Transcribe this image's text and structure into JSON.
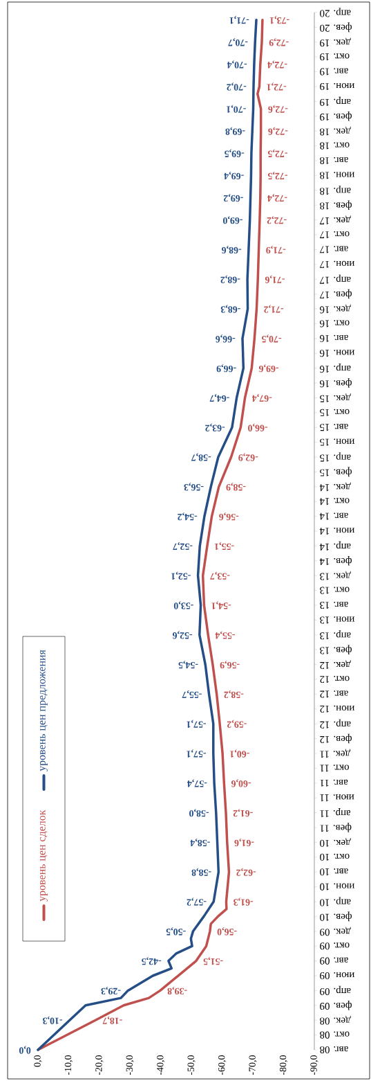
{
  "chart_data": {
    "type": "line",
    "orientation": "horizontal",
    "legend": "left",
    "ylim": [
      "2008-08",
      "2020-04"
    ],
    "yticks": [
      {
        "value": "2008-08",
        "label": "авг. 08"
      },
      {
        "value": "2008-10",
        "label": "окт. 08"
      },
      {
        "value": "2008-12",
        "label": "дек. 08"
      },
      {
        "value": "2009-02",
        "label": "фев. 09"
      },
      {
        "value": "2009-04",
        "label": "апр. 09"
      },
      {
        "value": "2009-06",
        "label": "июн. 09"
      },
      {
        "value": "2009-08",
        "label": "авг. 09"
      },
      {
        "value": "2009-10",
        "label": "окт. 09"
      },
      {
        "value": "2009-12",
        "label": "дек. 09"
      },
      {
        "value": "2010-02",
        "label": "фев. 10"
      },
      {
        "value": "2010-04",
        "label": "апр. 10"
      },
      {
        "value": "2010-06",
        "label": "июн. 10"
      },
      {
        "value": "2010-08",
        "label": "авг. 10"
      },
      {
        "value": "2010-10",
        "label": "окт. 10"
      },
      {
        "value": "2010-12",
        "label": "дек. 10"
      },
      {
        "value": "2011-02",
        "label": "фев. 11"
      },
      {
        "value": "2011-04",
        "label": "апр. 11"
      },
      {
        "value": "2011-06",
        "label": "июн. 11"
      },
      {
        "value": "2011-08",
        "label": "авг. 11"
      },
      {
        "value": "2011-10",
        "label": "окт. 11"
      },
      {
        "value": "2011-12",
        "label": "дек. 11"
      },
      {
        "value": "2012-02",
        "label": "фев. 12"
      },
      {
        "value": "2012-04",
        "label": "апр. 12"
      },
      {
        "value": "2012-06",
        "label": "июн. 12"
      },
      {
        "value": "2012-08",
        "label": "авг. 12"
      },
      {
        "value": "2012-10",
        "label": "окт. 12"
      },
      {
        "value": "2012-12",
        "label": "дек. 12"
      },
      {
        "value": "2013-02",
        "label": "фев. 13"
      },
      {
        "value": "2013-04",
        "label": "апр. 13"
      },
      {
        "value": "2013-06",
        "label": "июн. 13"
      },
      {
        "value": "2013-08",
        "label": "авг. 13"
      },
      {
        "value": "2013-10",
        "label": "окт. 13"
      },
      {
        "value": "2013-12",
        "label": "дек. 13"
      },
      {
        "value": "2014-02",
        "label": "фев. 14"
      },
      {
        "value": "2014-04",
        "label": "апр. 14"
      },
      {
        "value": "2014-06",
        "label": "июн. 14"
      },
      {
        "value": "2014-08",
        "label": "авг. 14"
      },
      {
        "value": "2014-10",
        "label": "окт. 14"
      },
      {
        "value": "2014-12",
        "label": "дек. 14"
      },
      {
        "value": "2015-02",
        "label": "фев. 15"
      },
      {
        "value": "2015-04",
        "label": "апр. 15"
      },
      {
        "value": "2015-06",
        "label": "июн. 15"
      },
      {
        "value": "2015-08",
        "label": "авг. 15"
      },
      {
        "value": "2015-10",
        "label": "окт. 15"
      },
      {
        "value": "2015-12",
        "label": "дек. 15"
      },
      {
        "value": "2016-02",
        "label": "фев. 16"
      },
      {
        "value": "2016-04",
        "label": "апр. 16"
      },
      {
        "value": "2016-06",
        "label": "июн. 16"
      },
      {
        "value": "2016-08",
        "label": "авг. 16"
      },
      {
        "value": "2016-10",
        "label": "окт. 16"
      },
      {
        "value": "2016-12",
        "label": "дек. 16"
      },
      {
        "value": "2017-02",
        "label": "фев. 17"
      },
      {
        "value": "2017-04",
        "label": "апр. 17"
      },
      {
        "value": "2017-06",
        "label": "июн. 17"
      },
      {
        "value": "2017-08",
        "label": "авг. 17"
      },
      {
        "value": "2017-10",
        "label": "окт. 17"
      },
      {
        "value": "2017-12",
        "label": "дек. 17"
      },
      {
        "value": "2018-02",
        "label": "фев. 18"
      },
      {
        "value": "2018-04",
        "label": "апр. 18"
      },
      {
        "value": "2018-06",
        "label": "июн. 18"
      },
      {
        "value": "2018-08",
        "label": "авг. 18"
      },
      {
        "value": "2018-10",
        "label": "окт. 18"
      },
      {
        "value": "2018-12",
        "label": "дек. 18"
      },
      {
        "value": "2019-02",
        "label": "фев. 19"
      },
      {
        "value": "2019-04",
        "label": "апр. 19"
      },
      {
        "value": "2019-06",
        "label": "июн. 19"
      },
      {
        "value": "2019-08",
        "label": "авг. 19"
      },
      {
        "value": "2019-10",
        "label": "окт. 19"
      },
      {
        "value": "2019-12",
        "label": "дек. 19"
      },
      {
        "value": "2020-02",
        "label": "фев. 20"
      },
      {
        "value": "2020-04",
        "label": "апр. 20"
      }
    ],
    "xlim": [
      0,
      -90
    ],
    "xticks": [
      {
        "value": 0,
        "label": "0,0"
      },
      {
        "value": -10,
        "label": "-10,0"
      },
      {
        "value": -20,
        "label": "-20,0"
      },
      {
        "value": -30,
        "label": "-30,0"
      },
      {
        "value": -40,
        "label": "-40,0"
      },
      {
        "value": -50,
        "label": "-50,0"
      },
      {
        "value": -60,
        "label": "-60,0"
      },
      {
        "value": -70,
        "label": "-70,0"
      },
      {
        "value": -80,
        "label": "-80,0"
      },
      {
        "value": -90,
        "label": "-90,0"
      }
    ],
    "series": [
      {
        "name": "уровень цен сделок",
        "color": "#c0504d",
        "x": [
          "2008-08",
          "2008-12",
          "2009-02",
          "2009-03",
          "2009-04",
          "2009-08",
          "2009-10",
          "2009-12",
          "2010-01",
          "2010-02",
          "2010-03",
          "2010-04",
          "2010-08",
          "2010-12",
          "2011-04",
          "2011-08",
          "2011-12",
          "2012-04",
          "2012-08",
          "2012-12",
          "2013-04",
          "2013-08",
          "2013-12",
          "2014-04",
          "2014-08",
          "2014-12",
          "2015-04",
          "2015-08",
          "2015-12",
          "2016-04",
          "2016-08",
          "2016-12",
          "2017-04",
          "2017-08",
          "2017-12",
          "2018-03",
          "2018-06",
          "2018-09",
          "2018-12",
          "2019-03",
          "2019-05",
          "2019-06",
          "2019-09",
          "2019-12",
          "2020-03"
        ],
        "values": [
          0,
          -18.7,
          -27.9,
          -36.1,
          -39.8,
          -51.5,
          -54.8,
          -56.0,
          -56.3,
          -58.6,
          -61.4,
          -61.3,
          -62.2,
          -61.6,
          -61.2,
          -60.6,
          -60.1,
          -59.2,
          -58.2,
          -56.9,
          -55.4,
          -54.1,
          -53.7,
          -55.1,
          -56.6,
          -58.9,
          -62.9,
          -66.0,
          -67.4,
          -69.6,
          -70.5,
          -71.2,
          -71.6,
          -71.9,
          -72.2,
          -72.4,
          -72.5,
          -72.5,
          -72.6,
          -72.6,
          -71.5,
          -72.1,
          -72.4,
          -72.9,
          -73.1
        ],
        "value_labels": [
          null,
          "-18,7",
          null,
          null,
          "-39,8",
          "-51,5",
          null,
          "-56,0",
          null,
          null,
          null,
          "-61,3",
          "-62,2",
          "-61,6",
          "-61,2",
          "-60,6",
          "-60,1",
          "-59,2",
          "-58,2",
          "-56,9",
          "-55,4",
          "-54,1",
          "-53,7",
          "-55,1",
          "-56,6",
          "-58,9",
          "-62,9",
          "-66,0",
          "-67,4",
          "-69,6",
          "-70,5",
          "-71,2",
          "-71,6",
          "-71,9",
          "-72,2",
          "-72,4",
          "-72,5",
          "-72,5",
          "-72,6",
          "-72,6",
          null,
          "-72,1",
          "-72,4",
          "-72,9",
          "-73,1"
        ]
      },
      {
        "name": "уровень цен предложения",
        "color": "#254e86",
        "x": [
          "2008-08",
          "2008-12",
          "2009-02",
          "2009-03",
          "2009-04",
          "2009-06",
          "2009-07",
          "2009-08",
          "2009-09",
          "2009-10",
          "2009-11",
          "2009-12",
          "2010-02",
          "2010-04",
          "2010-08",
          "2010-12",
          "2011-04",
          "2011-08",
          "2011-12",
          "2012-04",
          "2012-08",
          "2012-12",
          "2013-04",
          "2013-08",
          "2013-12",
          "2014-04",
          "2014-08",
          "2014-12",
          "2015-04",
          "2015-08",
          "2015-12",
          "2016-04",
          "2016-08",
          "2016-12",
          "2017-04",
          "2017-08",
          "2017-12",
          "2018-03",
          "2018-06",
          "2018-09",
          "2018-12",
          "2019-03",
          "2019-06",
          "2019-09",
          "2019-12",
          "2020-03"
        ],
        "values": [
          0,
          -10.3,
          -15.5,
          -27.0,
          -29.3,
          -37.4,
          -43.5,
          -42.5,
          -45.0,
          -50.2,
          -49.8,
          -50.5,
          -54.0,
          -57.2,
          -58.8,
          -58.4,
          -58.0,
          -57.4,
          -57.1,
          -57.1,
          -55.7,
          -54.5,
          -52.6,
          -53.0,
          -52.1,
          -52.7,
          -54.2,
          -56.3,
          -58.7,
          -63.2,
          -64.7,
          -66.9,
          -66.6,
          -68.3,
          -68.2,
          -68.6,
          -69.0,
          -69.2,
          -69.4,
          -69.5,
          -69.8,
          -70.1,
          -70.2,
          -70.4,
          -70.7,
          -71.1
        ],
        "value_labels": [
          "0,0",
          "-10,3",
          null,
          null,
          "-29,3",
          null,
          null,
          "-42,5",
          null,
          null,
          null,
          "-50,5",
          null,
          "-57,2",
          "-58,8",
          "-58,4",
          "-58,0",
          "-57,4",
          "-57,1",
          "-57,1",
          "-55,7",
          "-54,5",
          "-52,6",
          "-53,0",
          "-52,1",
          "-52,7",
          "-54,2",
          "-56,3",
          "-58,7",
          "-63,2",
          "-64,7",
          "-66,9",
          "-66,6",
          "-68,3",
          "-68,2",
          "-68,6",
          "-69,0",
          "-69,2",
          "-69,4",
          "-69,5",
          "-69,8",
          "-70,1",
          "-70,2",
          "-70,4",
          "-70,7",
          "-71,1"
        ]
      }
    ]
  }
}
